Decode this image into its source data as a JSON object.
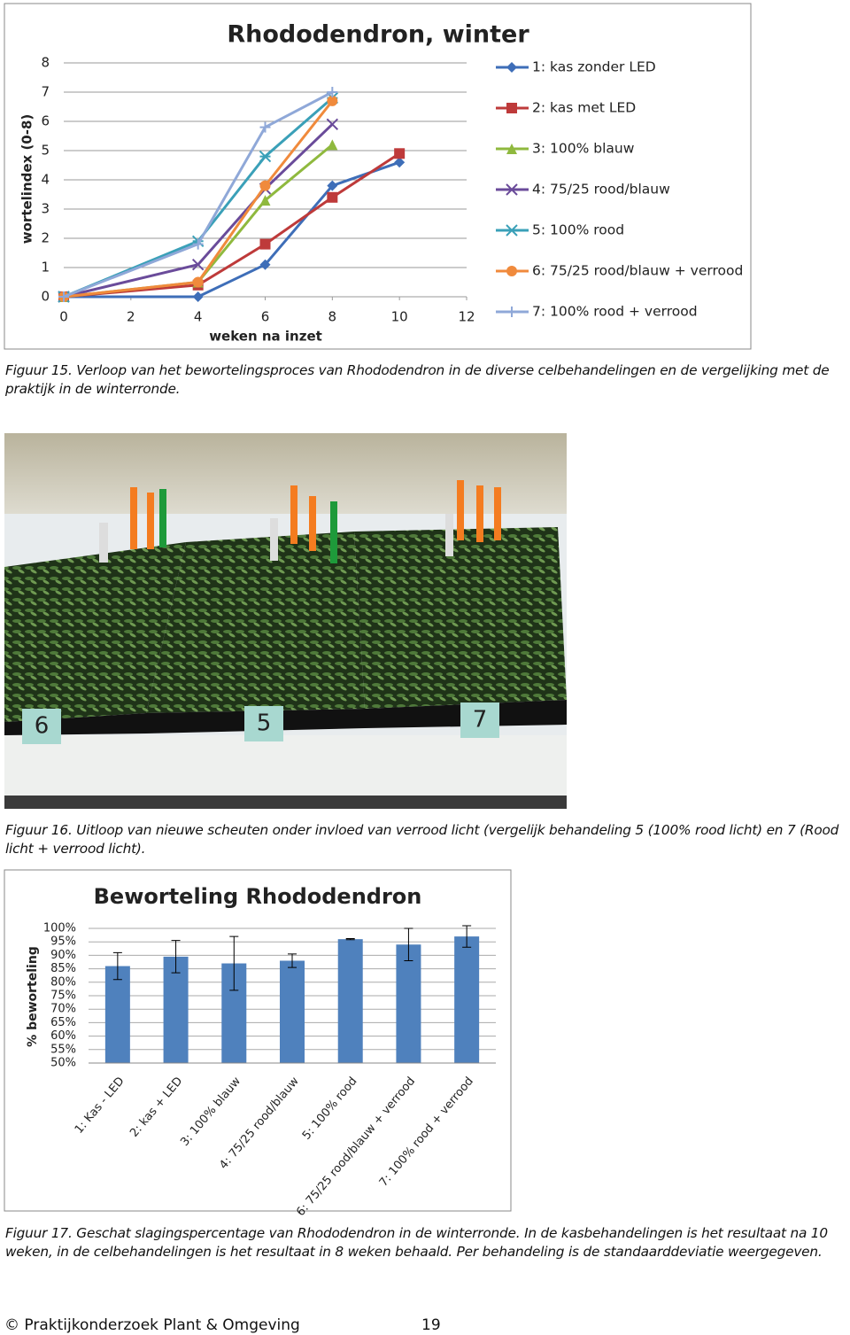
{
  "chart_data": [
    {
      "type": "line",
      "title": "Rhododendron, winter",
      "xlabel": "weken na inzet",
      "ylabel": "wortelindex (0-8)",
      "x": [
        0,
        4,
        6,
        8,
        10
      ],
      "xlim": [
        0,
        12
      ],
      "xticks": [
        0,
        2,
        4,
        6,
        8,
        10,
        12
      ],
      "ylim": [
        0,
        8
      ],
      "yticks": [
        0,
        1,
        2,
        3,
        4,
        5,
        6,
        7,
        8
      ],
      "grid": true,
      "legend": "right",
      "series": [
        {
          "name": "1: kas zonder LED",
          "color": "#3e6eb8",
          "marker": "diamond",
          "values": [
            0,
            0,
            1.1,
            3.8,
            4.6
          ]
        },
        {
          "name": "2: kas met LED",
          "color": "#be3a3a",
          "marker": "square",
          "values": [
            0,
            0.4,
            1.8,
            3.4,
            4.9
          ]
        },
        {
          "name": "3: 100% blauw",
          "color": "#8fb93e",
          "marker": "triangle",
          "values": [
            0,
            0.5,
            3.3,
            5.2,
            null
          ]
        },
        {
          "name": "4: 75/25 rood/blauw",
          "color": "#6a4b9a",
          "marker": "x",
          "values": [
            0,
            1.1,
            3.7,
            5.9,
            null
          ]
        },
        {
          "name": "5: 100% rood",
          "color": "#3aa0b8",
          "marker": "star",
          "values": [
            0,
            1.9,
            4.8,
            6.8,
            null
          ]
        },
        {
          "name": "6: 75/25 rood/blauw + verrood",
          "color": "#f08a3c",
          "marker": "circle",
          "values": [
            0,
            0.5,
            3.8,
            6.7,
            null
          ]
        },
        {
          "name": "7: 100% rood + verrood",
          "color": "#8fa8d8",
          "marker": "plus",
          "values": [
            0,
            1.8,
            5.8,
            7.0,
            null
          ]
        }
      ]
    },
    {
      "type": "bar",
      "title": "Beworteling Rhododendron",
      "ylabel": "% beworteling",
      "categories": [
        "1: Kas - LED",
        "2: kas + LED",
        "3: 100% blauw",
        "4: 75/25 rood/blauw",
        "5: 100% rood",
        "6: 75/25 rood/blauw + verrood",
        "7: 100% rood + verrood"
      ],
      "values": [
        86,
        89.5,
        87,
        88,
        96,
        94,
        97
      ],
      "errors": [
        5,
        6,
        10,
        2.5,
        0.2,
        6,
        4
      ],
      "color": "#4f81bd",
      "grid": true,
      "ylim": [
        50,
        100
      ],
      "yticks": [
        {
          "value": 50,
          "label": "50%"
        },
        {
          "value": 55,
          "label": "55%"
        },
        {
          "value": 60,
          "label": "60%"
        },
        {
          "value": 65,
          "label": "65%"
        },
        {
          "value": 70,
          "label": "70%"
        },
        {
          "value": 75,
          "label": "75%"
        },
        {
          "value": 80,
          "label": "80%"
        },
        {
          "value": 85,
          "label": "85%"
        },
        {
          "value": 90,
          "label": "90%"
        },
        {
          "value": 95,
          "label": "95%"
        },
        {
          "value": 100,
          "label": "100%"
        }
      ]
    }
  ],
  "captions": [
    "Figuur 15. Verloop van het bewortelingsproces van Rhododendron in de diverse celbehandelingen en de vergelijking met de praktijk in de winterronde.",
    "Figuur 16. Uitloop van nieuwe scheuten onder invloed van verrood licht (vergelijk behandeling 5 (100% rood licht) en 7 (Rood licht + verrood licht).",
    "Figuur 17. Geschat slagingspercentage van Rhododendron in de winterronde. In de kasbehandelingen is het resultaat na 10 weken, in de celbehandelingen is het resultaat in 8 weken behaald. Per behandeling is de standaarddeviatie weergegeven."
  ],
  "photo_labels": [
    "6",
    "5",
    "7"
  ],
  "footer": {
    "copyright": "© Praktijkonderzoek Plant & Omgeving",
    "page": "19"
  }
}
